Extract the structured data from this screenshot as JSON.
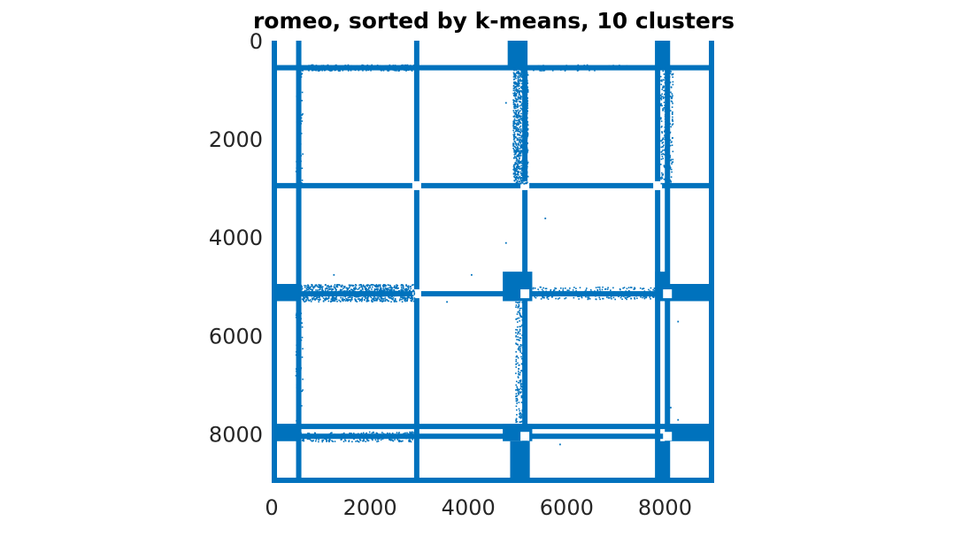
{
  "chart_data": {
    "type": "scatter",
    "subtype": "sparsity-pattern",
    "title": "romeo, sorted by k-means, 10 clusters",
    "xlabel": "",
    "ylabel": "",
    "xlim": [
      0,
      9000
    ],
    "ylim": [
      9000,
      0
    ],
    "y_axis_direction": "reversed",
    "xticks": [
      0,
      2000,
      4000,
      6000,
      8000
    ],
    "yticks": [
      0,
      2000,
      4000,
      6000,
      8000
    ],
    "grid": false,
    "legend": "none",
    "marker_color": "#0072BD",
    "dense_rows": [
      550,
      2950,
      5150,
      7850,
      8050,
      9000
    ],
    "dense_cols": [
      0,
      550,
      2950,
      5150,
      7850,
      8050,
      9000
    ],
    "blocks": [
      {
        "x": [
          4800,
          5200
        ],
        "y": [
          0,
          550
        ]
      },
      {
        "x": [
          7800,
          8100
        ],
        "y": [
          0,
          550
        ]
      },
      {
        "x": [
          0,
          550
        ],
        "y": [
          4950,
          5300
        ]
      },
      {
        "x": [
          4700,
          5300
        ],
        "y": [
          4700,
          5300
        ]
      },
      {
        "x": [
          7800,
          8100
        ],
        "y": [
          4700,
          5300
        ]
      },
      {
        "x": [
          8100,
          9000
        ],
        "y": [
          4950,
          5300
        ]
      },
      {
        "x": [
          0,
          550
        ],
        "y": [
          7800,
          8150
        ]
      },
      {
        "x": [
          4700,
          5300
        ],
        "y": [
          7800,
          8150
        ]
      },
      {
        "x": [
          8100,
          9000
        ],
        "y": [
          7800,
          8150
        ]
      },
      {
        "x": [
          4850,
          5250
        ],
        "y": [
          8150,
          9000
        ]
      },
      {
        "x": [
          7850,
          8100
        ],
        "y": [
          8150,
          9000
        ]
      }
    ],
    "scatter_regions": [
      {
        "x": [
          550,
          2900
        ],
        "y": [
          4950,
          5300
        ],
        "density": "high"
      },
      {
        "x": [
          5300,
          7800
        ],
        "y": [
          5000,
          5250
        ],
        "density": "medium"
      },
      {
        "x": [
          550,
          2900
        ],
        "y": [
          7950,
          8150
        ],
        "density": "medium"
      },
      {
        "x": [
          4900,
          5200
        ],
        "y": [
          550,
          2900
        ],
        "density": "high"
      },
      {
        "x": [
          4950,
          5150
        ],
        "y": [
          5300,
          7750
        ],
        "density": "medium"
      },
      {
        "x": [
          7900,
          8150
        ],
        "y": [
          550,
          2900
        ],
        "density": "medium"
      },
      {
        "x": [
          550,
          2900
        ],
        "y": [
          480,
          600
        ],
        "density": "medium"
      },
      {
        "x": [
          5200,
          7300
        ],
        "y": [
          480,
          600
        ],
        "density": "low"
      },
      {
        "x": [
          480,
          620
        ],
        "y": [
          550,
          2900
        ],
        "density": "low"
      },
      {
        "x": [
          480,
          620
        ],
        "y": [
          5300,
          7800
        ],
        "density": "low"
      }
    ],
    "isolated_points": [
      [
        3300,
        550
      ],
      [
        3650,
        550
      ],
      [
        4500,
        550
      ],
      [
        4750,
        1250
      ],
      [
        5550,
        3600
      ],
      [
        4750,
        4100
      ],
      [
        4050,
        4750
      ],
      [
        1250,
        4750
      ],
      [
        3550,
        5300
      ],
      [
        8250,
        5700
      ],
      [
        550,
        3650
      ],
      [
        550,
        4550
      ],
      [
        550,
        3200
      ],
      [
        5850,
        8200
      ],
      [
        7450,
        8050
      ],
      [
        7650,
        8050
      ],
      [
        8100,
        7450
      ],
      [
        8250,
        7700
      ]
    ]
  }
}
